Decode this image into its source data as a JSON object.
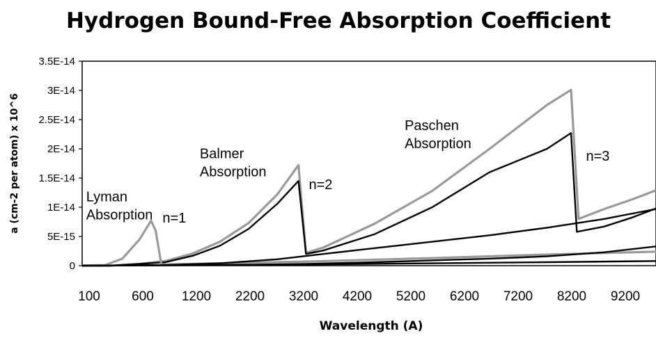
{
  "chart_data": {
    "type": "line",
    "title": "Hydrogen Bound-Free Absorption Coefficient",
    "xlabel": "Wavelength (A)",
    "ylabel": "a (cm-2 per atom) x 10^6",
    "xlim": [
      100,
      10100
    ],
    "ylim": [
      0,
      3.5e-14
    ],
    "x_ticks": [
      "100",
      "600",
      "1200",
      "2200",
      "3200",
      "4200",
      "5200",
      "6200",
      "7200",
      "8200",
      "9200"
    ],
    "y_ticks": [
      "0",
      "5E-15",
      "1E-14",
      "1.5E-14",
      "2E-14",
      "2.5E-14",
      "3E-14",
      "3.5E-14"
    ],
    "grid": false,
    "legend": "none",
    "series": [
      {
        "color": "#999999",
        "points": [
          [
            100,
            0
          ],
          [
            600,
            0
          ],
          [
            1100,
            3e-16
          ],
          [
            1550,
            8e-16
          ],
          [
            2030,
            2.1e-15
          ],
          [
            2500,
            4.1e-15
          ],
          [
            3000,
            7.3e-15
          ],
          [
            3500,
            1.22e-14
          ],
          [
            3870,
            1.72e-14
          ],
          [
            4000,
            2.2e-15
          ],
          [
            4300,
            3.1e-15
          ],
          [
            5200,
            7.2e-15
          ],
          [
            6200,
            1.28e-14
          ],
          [
            7200,
            2e-14
          ],
          [
            8200,
            2.75e-14
          ],
          [
            8620,
            3.01e-14
          ],
          [
            8750,
            8e-15
          ],
          [
            9200,
            9.7e-15
          ],
          [
            9700,
            1.14e-14
          ],
          [
            10100,
            1.29e-14
          ]
        ]
      },
      {
        "color": "#000000",
        "points": [
          [
            100,
            0
          ],
          [
            600,
            0
          ],
          [
            1100,
            3e-16
          ],
          [
            1550,
            6e-16
          ],
          [
            2030,
            1.7e-15
          ],
          [
            2500,
            3.4e-15
          ],
          [
            3000,
            6.3e-15
          ],
          [
            3500,
            1.06e-14
          ],
          [
            3870,
            1.45e-14
          ],
          [
            4000,
            2e-15
          ],
          [
            4300,
            2.6e-15
          ],
          [
            5200,
            5.4e-15
          ],
          [
            6200,
            1e-14
          ],
          [
            7200,
            1.6e-14
          ],
          [
            8200,
            2e-14
          ],
          [
            8620,
            2.27e-14
          ],
          [
            8720,
            5.8e-15
          ],
          [
            9200,
            6.7e-15
          ],
          [
            9700,
            8.3e-15
          ],
          [
            10100,
            9.8e-15
          ]
        ]
      },
      {
        "color": "#999999",
        "points": [
          [
            100,
            0
          ],
          [
            500,
            1e-16
          ],
          [
            800,
            1.2e-15
          ],
          [
            1100,
            4.5e-15
          ],
          [
            1300,
            7.7e-15
          ],
          [
            1380,
            6e-15
          ],
          [
            1480,
            2e-16
          ],
          [
            2500,
            4e-16
          ],
          [
            4000,
            7e-16
          ],
          [
            6200,
            1.3e-15
          ],
          [
            8200,
            1.9e-15
          ],
          [
            10100,
            2.4e-15
          ]
        ]
      },
      {
        "color": "#000000",
        "points": [
          [
            100,
            0
          ],
          [
            1500,
            1e-16
          ],
          [
            2500,
            4e-16
          ],
          [
            3500,
            1.1e-15
          ],
          [
            4300,
            2e-15
          ],
          [
            5200,
            3e-15
          ],
          [
            6200,
            4.1e-15
          ],
          [
            7200,
            5.2e-15
          ],
          [
            8200,
            6.5e-15
          ],
          [
            9200,
            8e-15
          ],
          [
            10100,
            9.7e-15
          ]
        ]
      },
      {
        "color": "#000000",
        "points": [
          [
            100,
            0
          ],
          [
            2500,
            1e-16
          ],
          [
            4000,
            3e-16
          ],
          [
            5200,
            6e-16
          ],
          [
            6200,
            9e-16
          ],
          [
            7200,
            1.2e-15
          ],
          [
            8200,
            1.6e-15
          ],
          [
            9200,
            2.3e-15
          ],
          [
            10100,
            3.3e-15
          ]
        ]
      },
      {
        "color": "#000000",
        "points": [
          [
            100,
            0
          ],
          [
            4000,
            2e-16
          ],
          [
            6200,
            4e-16
          ],
          [
            8200,
            6e-16
          ],
          [
            10100,
            8e-16
          ]
        ]
      }
    ],
    "annotations": [
      {
        "lines": [
          "Lyman",
          "Absorption"
        ],
        "x": 170,
        "y": 1.1e-14
      },
      {
        "lines": [
          "n=1"
        ],
        "x": 1500,
        "y": 7.4e-15
      },
      {
        "lines": [
          "Balmer",
          "Absorption"
        ],
        "x": 2150,
        "y": 1.84e-14
      },
      {
        "lines": [
          "n=2"
        ],
        "x": 4050,
        "y": 1.31e-14
      },
      {
        "lines": [
          "Paschen",
          "Absorption"
        ],
        "x": 5720,
        "y": 2.32e-14
      },
      {
        "lines": [
          "n=3"
        ],
        "x": 8880,
        "y": 1.8e-14
      }
    ]
  }
}
